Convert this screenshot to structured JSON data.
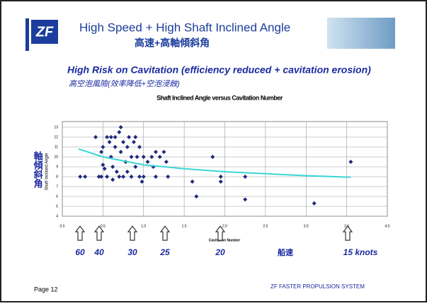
{
  "slide": {
    "logo": "ZF",
    "title": "High Speed + High Shaft Inclined Angle",
    "title_cn": "高速+高軸傾斜角",
    "subtitle": "High Risk on Cavitation (efficiency reduced + cavitation erosion)",
    "subtitle_cn": "高空泡風險(效率降低+空泡浸蝕)",
    "y_label_cn": "軸傾斜角",
    "speeds": [
      "60",
      "40",
      "30",
      "25",
      "20",
      "15 knots"
    ],
    "speed_label_cn": "船速",
    "page": "Page 12",
    "footer": "ZF FASTER PROPULSION SYSTEM"
  },
  "chart_data": {
    "type": "scatter",
    "title": "Shaft Inclined Angle versus Cavitation Number",
    "x_label": "Cavitation Number",
    "y_label": "Shaft Inclined Angle",
    "xlim": [
      0,
      4
    ],
    "ylim": [
      4,
      13
    ],
    "xticks": [
      {
        "value": 0,
        "label": "0.0"
      },
      0.5,
      {
        "value": 1,
        "label": "1.0"
      },
      1.5,
      {
        "value": 2,
        "label": "2.0"
      },
      2.5,
      {
        "value": 3,
        "label": "3.0"
      },
      3.5,
      {
        "value": 4,
        "label": "4.0"
      }
    ],
    "yticks": [
      4,
      5,
      6,
      7,
      8,
      9,
      10,
      11,
      12,
      13
    ],
    "grid": true,
    "series": [
      {
        "type": "scatter",
        "color": "#1f2a7a",
        "x": [
          0.22,
          0.28,
          0.41,
          0.45,
          0.48,
          0.48,
          0.5,
          0.5,
          0.52,
          0.55,
          0.55,
          0.58,
          0.6,
          0.6,
          0.62,
          0.62,
          0.65,
          0.65,
          0.67,
          0.7,
          0.7,
          0.72,
          0.72,
          0.75,
          0.75,
          0.78,
          0.8,
          0.8,
          0.82,
          0.85,
          0.85,
          0.88,
          0.9,
          0.9,
          0.92,
          0.95,
          0.95,
          0.98,
          1.0,
          1.0,
          1.05,
          1.1,
          1.12,
          1.15,
          1.15,
          1.2,
          1.25,
          1.28,
          1.3,
          1.6,
          1.65,
          1.85,
          1.95,
          1.95,
          2.25,
          2.25,
          3.1,
          3.55
        ],
        "values": [
          8,
          8,
          12,
          8,
          8,
          10.5,
          11,
          9.2,
          8.8,
          12,
          8,
          11.5,
          12,
          10,
          9,
          7.7,
          12,
          11,
          8.5,
          12.5,
          8,
          13,
          10.5,
          11.5,
          8,
          9.5,
          11,
          8.5,
          12,
          10,
          8,
          11.5,
          12,
          9,
          10,
          11,
          8,
          7.5,
          10,
          8,
          9.5,
          10,
          9,
          10.5,
          8,
          10,
          10.5,
          9.5,
          8,
          7.5,
          6,
          10,
          8,
          7.5,
          8,
          5.7,
          5.3,
          9.5
        ]
      },
      {
        "type": "line",
        "color": "#3ad6d6",
        "x": [
          0.2,
          0.5,
          1.0,
          1.5,
          2.0,
          2.5,
          3.0,
          3.55
        ],
        "values": [
          10.8,
          10.0,
          9.2,
          8.8,
          8.5,
          8.3,
          8.1,
          7.95
        ]
      }
    ]
  }
}
